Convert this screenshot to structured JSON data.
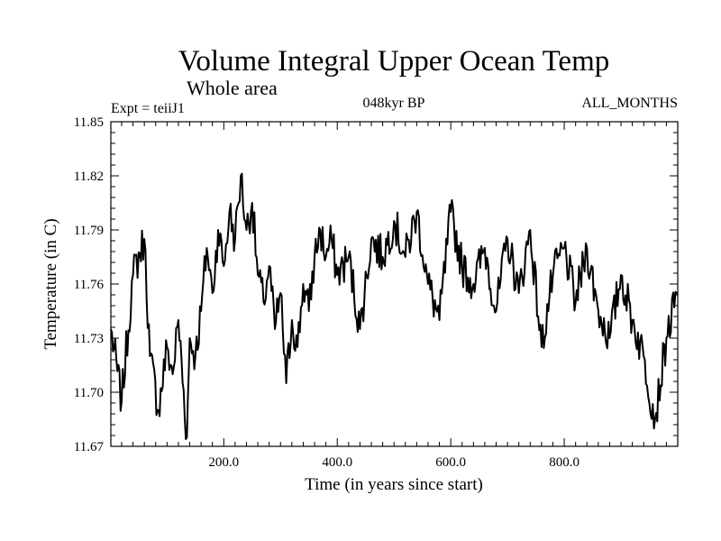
{
  "chart_data": {
    "type": "line",
    "title": "Volume Integral Upper Ocean Temp",
    "subtitle": "Whole area",
    "experiment": "Expt = teiiJ1",
    "period": "048kyr BP",
    "months": "ALL_MONTHS",
    "xlabel": "Time (in years since start)",
    "ylabel": "Temperature (in C)",
    "xlim": [
      1,
      1000
    ],
    "ylim": [
      11.67,
      11.85
    ],
    "xticks": [
      200,
      400,
      600,
      800
    ],
    "xtick_labels": [
      "200.0",
      "400.0",
      "600.0",
      "800.0"
    ],
    "yticks": [
      11.67,
      11.7,
      11.73,
      11.76,
      11.79,
      11.82,
      11.85
    ],
    "ytick_labels": [
      "11.67",
      "11.70",
      "11.73",
      "11.76",
      "11.79",
      "11.82",
      "11.85"
    ],
    "grid": false,
    "line_color": "#000000",
    "series": [
      {
        "x": [
          1,
          20,
          40,
          60,
          70,
          85,
          100,
          110,
          120,
          135,
          140,
          150,
          160,
          170,
          180,
          190,
          200,
          210,
          220,
          230,
          240,
          250,
          260,
          270,
          280,
          290,
          300,
          310,
          320,
          330,
          340,
          350,
          360,
          370,
          380,
          390,
          400,
          420,
          440,
          460,
          480,
          500,
          520,
          540,
          560,
          580,
          600,
          620,
          640,
          660,
          680,
          700,
          720,
          740,
          760,
          780,
          800,
          820,
          840,
          860,
          880,
          900,
          920,
          940,
          960,
          980,
          1000
        ],
        "y": [
          11.735,
          11.695,
          11.765,
          11.785,
          11.72,
          11.69,
          11.725,
          11.71,
          11.74,
          11.675,
          11.73,
          11.72,
          11.745,
          11.78,
          11.755,
          11.79,
          11.77,
          11.8,
          11.785,
          11.82,
          11.79,
          11.805,
          11.765,
          11.75,
          11.77,
          11.735,
          11.755,
          11.705,
          11.74,
          11.725,
          11.76,
          11.745,
          11.775,
          11.79,
          11.775,
          11.785,
          11.765,
          11.775,
          11.735,
          11.785,
          11.775,
          11.795,
          11.775,
          11.8,
          11.76,
          11.74,
          11.8,
          11.77,
          11.76,
          11.78,
          11.745,
          11.785,
          11.755,
          11.79,
          11.725,
          11.765,
          11.78,
          11.75,
          11.78,
          11.745,
          11.73,
          11.765,
          11.74,
          11.72,
          11.685,
          11.73,
          11.755
        ]
      }
    ]
  }
}
